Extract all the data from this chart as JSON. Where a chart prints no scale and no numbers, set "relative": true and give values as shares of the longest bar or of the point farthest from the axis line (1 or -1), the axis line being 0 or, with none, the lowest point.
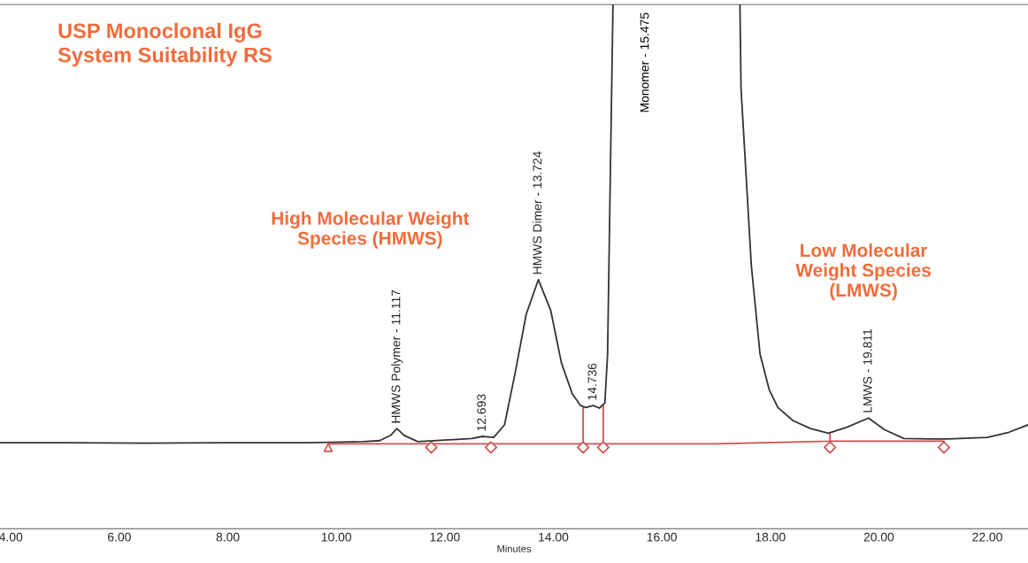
{
  "chart_data": {
    "type": "line",
    "relative": true,
    "title": "USP Monoclonal IgG\nSystem Suitability RS",
    "xlabel": "Minutes",
    "xlim": [
      3.8,
      22.75
    ],
    "xticks": [
      {
        "value": 4,
        "label": "4.00"
      },
      {
        "value": 6,
        "label": "6.00"
      },
      {
        "value": 8,
        "label": "8.00"
      },
      {
        "value": 10,
        "label": "10.00"
      },
      {
        "value": 12,
        "label": "12.00"
      },
      {
        "value": 14,
        "label": "14.00"
      },
      {
        "value": 16,
        "label": "16.00"
      },
      {
        "value": 18,
        "label": "18.00"
      },
      {
        "value": 20,
        "label": "20.00"
      },
      {
        "value": 22,
        "label": "22.00"
      }
    ],
    "grid": false,
    "legend": false,
    "series": [
      {
        "color": "#333333",
        "marker": "none",
        "x": [
          3.8,
          5.0,
          6.5,
          8.0,
          9.5,
          10.5,
          10.8,
          11.0,
          11.117,
          11.25,
          11.5,
          12.0,
          12.5,
          12.693,
          12.9,
          13.1,
          13.3,
          13.5,
          13.724,
          13.95,
          14.15,
          14.35,
          14.5,
          14.6,
          14.736,
          14.85,
          14.95,
          15.0,
          15.05,
          15.1,
          16.3,
          17.44,
          17.46,
          17.65,
          17.81,
          17.98,
          18.14,
          18.42,
          18.74,
          19.07,
          19.4,
          19.811,
          20.1,
          20.46,
          21.0,
          21.27,
          22.0,
          22.4,
          22.75
        ],
        "values": [
          0.164,
          0.164,
          0.163,
          0.164,
          0.164,
          0.166,
          0.168,
          0.178,
          0.191,
          0.178,
          0.166,
          0.169,
          0.172,
          0.176,
          0.174,
          0.198,
          0.299,
          0.409,
          0.475,
          0.417,
          0.316,
          0.257,
          0.235,
          0.231,
          0.235,
          0.23,
          0.24,
          0.333,
          0.671,
          1.0,
          null,
          1.0,
          0.84,
          0.502,
          0.333,
          0.265,
          0.231,
          0.206,
          0.191,
          0.182,
          0.193,
          0.211,
          0.189,
          0.172,
          0.171,
          0.171,
          0.174,
          0.184,
          0.198
        ]
      },
      {
        "color": "#d05050",
        "marker": "none",
        "x": [
          9.85,
          14.55,
          14.55,
          14.55,
          14.92,
          14.92,
          14.92,
          17.0,
          19.1,
          19.1,
          19.1,
          21.2
        ],
        "values": [
          0.162,
          0.162,
          0.231,
          0.162,
          0.162,
          0.236,
          0.162,
          0.162,
          0.167,
          0.182,
          0.167,
          0.167
        ]
      },
      {
        "type": "scatter",
        "color": "#d05050",
        "marker": "diamond",
        "x": [
          11.75,
          12.85,
          14.55,
          14.92,
          19.1,
          21.2
        ],
        "values": [
          0.155,
          0.155,
          0.155,
          0.155,
          0.155,
          0.155
        ]
      },
      {
        "type": "scatter",
        "color": "#d05050",
        "marker": "triangle",
        "x": [
          9.85
        ],
        "values": [
          0.155
        ]
      }
    ],
    "annotations": [
      {
        "text": "HMWS Polymer - 11.117",
        "x": 11.117,
        "y": 0.191
      },
      {
        "text": "12.693",
        "x": 12.693,
        "y": 0.176
      },
      {
        "text": "HMWS Dimer - 13.724",
        "x": 13.724,
        "y": 0.475
      },
      {
        "text": "14.736",
        "x": 14.736,
        "y": 0.235
      },
      "Monomer - 15.475",
      {
        "text": "LMWS - 19.811",
        "x": 19.811,
        "y": 0.211
      },
      "High Molecular Weight\nSpecies (HMWS)",
      "Low Molecular\nWeight Species\n(LMWS)"
    ]
  }
}
